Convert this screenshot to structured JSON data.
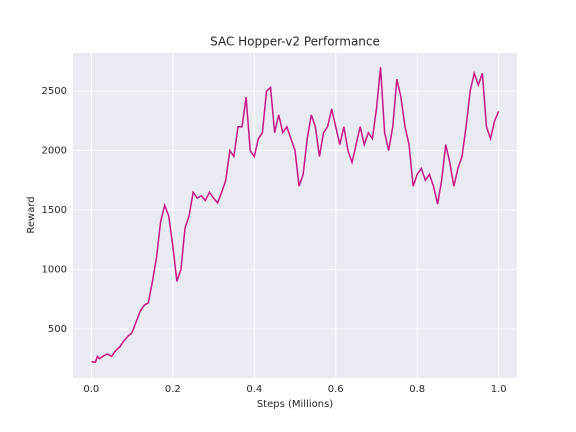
{
  "chart_data": {
    "type": "line",
    "title": "SAC Hopper-v2 Performance",
    "xlabel": "Steps (Millions)",
    "ylabel": "Reward",
    "x": [
      0.0,
      0.01,
      0.015,
      0.02,
      0.03,
      0.04,
      0.05,
      0.06,
      0.07,
      0.08,
      0.09,
      0.1,
      0.11,
      0.12,
      0.13,
      0.14,
      0.15,
      0.16,
      0.17,
      0.18,
      0.19,
      0.2,
      0.21,
      0.22,
      0.23,
      0.24,
      0.25,
      0.26,
      0.27,
      0.28,
      0.29,
      0.3,
      0.31,
      0.32,
      0.33,
      0.34,
      0.35,
      0.36,
      0.37,
      0.38,
      0.39,
      0.4,
      0.41,
      0.42,
      0.43,
      0.44,
      0.45,
      0.46,
      0.47,
      0.48,
      0.49,
      0.5,
      0.51,
      0.52,
      0.53,
      0.54,
      0.55,
      0.56,
      0.57,
      0.58,
      0.59,
      0.6,
      0.61,
      0.62,
      0.63,
      0.64,
      0.65,
      0.66,
      0.67,
      0.68,
      0.69,
      0.7,
      0.71,
      0.72,
      0.73,
      0.74,
      0.75,
      0.76,
      0.77,
      0.78,
      0.79,
      0.8,
      0.81,
      0.82,
      0.83,
      0.84,
      0.85,
      0.86,
      0.87,
      0.88,
      0.89,
      0.9,
      0.91,
      0.92,
      0.93,
      0.94,
      0.95,
      0.96,
      0.97,
      0.98,
      0.99,
      1.0
    ],
    "series": [
      {
        "name": "Reward",
        "color": "#c71585",
        "values": [
          225,
          220,
          270,
          250,
          275,
          290,
          270,
          320,
          350,
          400,
          440,
          470,
          560,
          650,
          700,
          720,
          900,
          1100,
          1400,
          1540,
          1450,
          1200,
          900,
          1000,
          1350,
          1450,
          1650,
          1600,
          1620,
          1580,
          1650,
          1600,
          1560,
          1650,
          1750,
          2000,
          1950,
          2200,
          2200,
          2450,
          2000,
          1950,
          2100,
          2150,
          2500,
          2530,
          2150,
          2300,
          2150,
          2200,
          2100,
          2000,
          1700,
          1800,
          2100,
          2300,
          2200,
          1950,
          2150,
          2200,
          2350,
          2200,
          2050,
          2200,
          2000,
          1900,
          2050,
          2200,
          2050,
          2150,
          2100,
          2350,
          2700,
          2150,
          2000,
          2200,
          2600,
          2450,
          2200,
          2050,
          1700,
          1800,
          1850,
          1750,
          1800,
          1700,
          1550,
          1750,
          2050,
          1900,
          1700,
          1850,
          1950,
          2200,
          2500,
          2650,
          2550,
          2650,
          2200,
          2100,
          2250,
          2330
        ]
      }
    ],
    "xlim": [
      -0.045,
      1.045
    ],
    "ylim": [
      88,
      2820
    ],
    "xticks": [
      {
        "value": 0,
        "label": "0.0"
      },
      0.2,
      0.4,
      0.6,
      0.8,
      {
        "value": 1,
        "label": "1.0"
      }
    ],
    "yticks": [
      500,
      1000,
      1500,
      2000,
      2500
    ],
    "grid": true
  }
}
